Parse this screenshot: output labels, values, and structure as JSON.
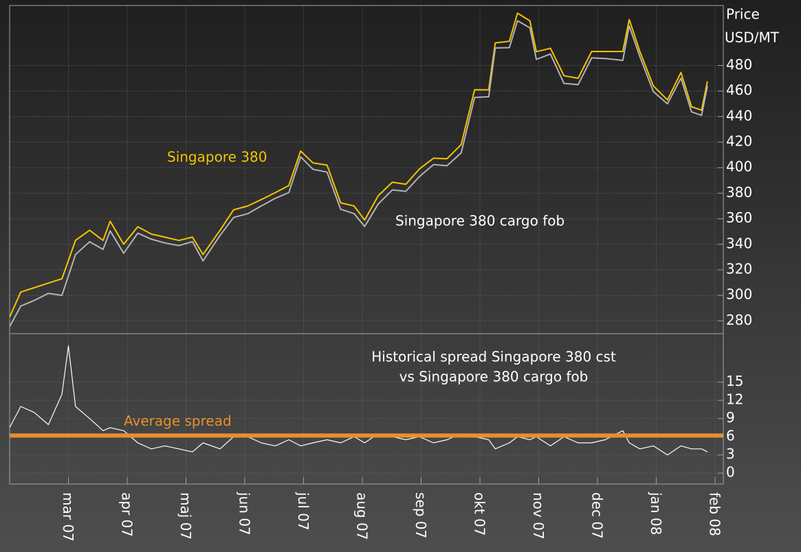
{
  "chart_data": [
    {
      "type": "line",
      "ylabel": "Price",
      "yunit": "USD/MT",
      "xlim": [
        0,
        12.14
      ],
      "ylim": [
        270,
        527
      ],
      "yticks": [
        280,
        300,
        320,
        340,
        360,
        380,
        400,
        420,
        440,
        460,
        480
      ],
      "grid": true,
      "x": [
        0,
        0.19,
        0.42,
        0.66,
        0.89,
        1.12,
        1.36,
        1.59,
        1.71,
        1.94,
        2.18,
        2.41,
        2.64,
        2.88,
        3.11,
        3.29,
        3.58,
        3.81,
        4.05,
        4.28,
        4.52,
        4.75,
        4.95,
        5.16,
        5.4,
        5.63,
        5.86,
        6.04,
        6.27,
        6.51,
        6.74,
        6.97,
        7.21,
        7.44,
        7.68,
        7.91,
        8.15,
        8.26,
        8.5,
        8.64,
        8.85,
        8.96,
        9.2,
        9.43,
        9.67,
        9.9,
        10.13,
        10.43,
        10.54,
        10.72,
        10.95,
        11.19,
        11.42,
        11.6,
        11.77,
        11.87
      ],
      "series": [
        {
          "name": "Singapore 380",
          "color": "#f5c400",
          "values": [
            283,
            302.6,
            306,
            309.6,
            313,
            343,
            351,
            343,
            358,
            340,
            353.7,
            348,
            345.6,
            343,
            345.6,
            332,
            351,
            367,
            370,
            375,
            380.5,
            386,
            413,
            403.7,
            402,
            372.5,
            370,
            359,
            378,
            388.6,
            387,
            399,
            407.4,
            407,
            418,
            461,
            461,
            497.7,
            499,
            521,
            515,
            490.8,
            493.5,
            472,
            470,
            491,
            491,
            491,
            516,
            491,
            464,
            453,
            474.6,
            447.7,
            445,
            467.6
          ]
        },
        {
          "name": "Singapore 380 cargo fob",
          "color": "#b4b4b4",
          "values": [
            275.5,
            291.6,
            296,
            301.6,
            300,
            332,
            342,
            336,
            350.5,
            333,
            348.7,
            344,
            341.1,
            339,
            342.1,
            327,
            347,
            361,
            364,
            370,
            376,
            380.5,
            408.5,
            398.7,
            396.5,
            367.5,
            364,
            354,
            371.5,
            382.6,
            381.5,
            393,
            402.4,
            401.5,
            411.5,
            455,
            455.5,
            493.7,
            494,
            515,
            509.5,
            484.8,
            489,
            466,
            465,
            486,
            485.5,
            484,
            511,
            487,
            459.5,
            450,
            470.1,
            443.7,
            441,
            464.1
          ]
        }
      ]
    },
    {
      "type": "line",
      "annotation": [
        "Historical spread Singapore 380 cst",
        "vs Singapore 380 cargo fob"
      ],
      "xlim": [
        0,
        12.14
      ],
      "xticks": [
        {
          "value": 1,
          "label": "mar 07"
        },
        {
          "value": 2,
          "label": "apr 07"
        },
        {
          "value": 3,
          "label": "maj 07"
        },
        {
          "value": 4,
          "label": "jun 07"
        },
        {
          "value": 5,
          "label": "jul 07"
        },
        {
          "value": 6,
          "label": "aug 07"
        },
        {
          "value": 7,
          "label": "sep 07"
        },
        {
          "value": 8,
          "label": "okt 07"
        },
        {
          "value": 9,
          "label": "nov 07"
        },
        {
          "value": 10,
          "label": "dec 07"
        },
        {
          "value": 11,
          "label": "jan 08"
        },
        {
          "value": 12,
          "label": "feb 08"
        }
      ],
      "ylim": [
        -1.8,
        23
      ],
      "yticks": [
        0,
        3,
        6,
        9,
        12,
        15
      ],
      "grid": true,
      "reference_line": {
        "value": 6.2,
        "label": "Average spread",
        "color": "#e8902a"
      },
      "x": [
        0,
        0.19,
        0.42,
        0.66,
        0.89,
        1.0,
        1.12,
        1.36,
        1.59,
        1.71,
        1.94,
        2.18,
        2.41,
        2.64,
        2.88,
        3.11,
        3.29,
        3.58,
        3.81,
        4.05,
        4.28,
        4.52,
        4.75,
        4.95,
        5.16,
        5.4,
        5.63,
        5.86,
        6.04,
        6.27,
        6.51,
        6.74,
        6.97,
        7.21,
        7.44,
        7.68,
        7.91,
        8.15,
        8.26,
        8.5,
        8.64,
        8.85,
        8.96,
        9.2,
        9.43,
        9.67,
        9.9,
        10.13,
        10.43,
        10.54,
        10.72,
        10.95,
        11.19,
        11.42,
        11.6,
        11.77,
        11.87
      ],
      "series": [
        {
          "color": "#ffffff",
          "values": [
            7.5,
            11,
            10,
            8,
            13,
            21,
            11,
            9,
            7,
            7.5,
            7,
            5,
            4,
            4.5,
            4,
            3.5,
            5,
            4,
            6,
            6,
            5,
            4.5,
            5.5,
            4.5,
            5,
            5.5,
            5,
            6,
            5,
            6.5,
            6,
            5.5,
            6,
            5,
            5.5,
            6.5,
            6,
            5.5,
            4,
            5,
            6,
            5.5,
            6,
            4.5,
            6,
            5,
            5,
            5.5,
            7,
            5,
            4,
            4.5,
            3,
            4.5,
            4,
            4,
            3.5
          ]
        }
      ]
    }
  ]
}
